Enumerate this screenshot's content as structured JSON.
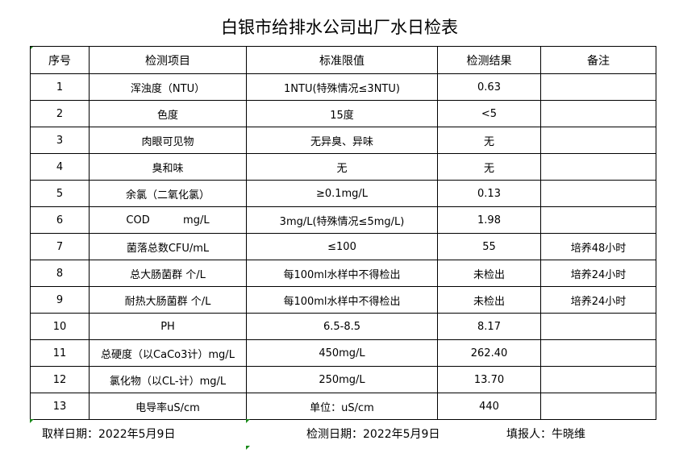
{
  "title": "白银市给排水公司出厂水日检表",
  "headers": [
    "序号",
    "检测项目",
    "标准限值",
    "检测结果",
    "备注"
  ],
  "rows": [
    [
      "1",
      "浑浊度（NTU）",
      "1NTU(特殊情况≤3NTU)",
      "0.63",
      ""
    ],
    [
      "2",
      "色度",
      "15度",
      "<5",
      ""
    ],
    [
      "3",
      "肉眼可见物",
      "无异臭、异味",
      "无",
      ""
    ],
    [
      "4",
      "臭和味",
      "无",
      "无",
      ""
    ],
    [
      "5",
      "余氯（二氧化氯）",
      "≥0.1mg/L",
      "0.13",
      ""
    ],
    [
      "6",
      "COD          mg/L",
      "3mg/L(特殊情况≤5mg/L)",
      "1.98",
      ""
    ],
    [
      "7",
      "菌落总数CFU/mL",
      "≤100",
      "55",
      "培养48小时"
    ],
    [
      "8",
      "总大肠菌群 个/L",
      "每100ml水样中不得检出",
      "未检出",
      "培养24小时"
    ],
    [
      "9",
      "耐热大肠菌群 个/L",
      "每100ml水样中不得检出",
      "未检出",
      "培养24小时"
    ],
    [
      "10",
      "PH",
      "6.5-8.5",
      "8.17",
      ""
    ],
    [
      "11",
      "总硬度（以CaCo3计）mg/L",
      "450mg/L",
      "262.40",
      ""
    ],
    [
      "12",
      "氯化物（以CL-计）mg/L",
      "250mg/L",
      "13.70",
      ""
    ],
    [
      "13",
      "电导率uS/cm",
      "单位：uS/cm",
      "440",
      ""
    ]
  ],
  "footer": {
    "sample_date": "取样日期：2022年5月9日",
    "test_date": "检测日期：2022年5月9日",
    "reporter": "填报人：牛晓维"
  }
}
